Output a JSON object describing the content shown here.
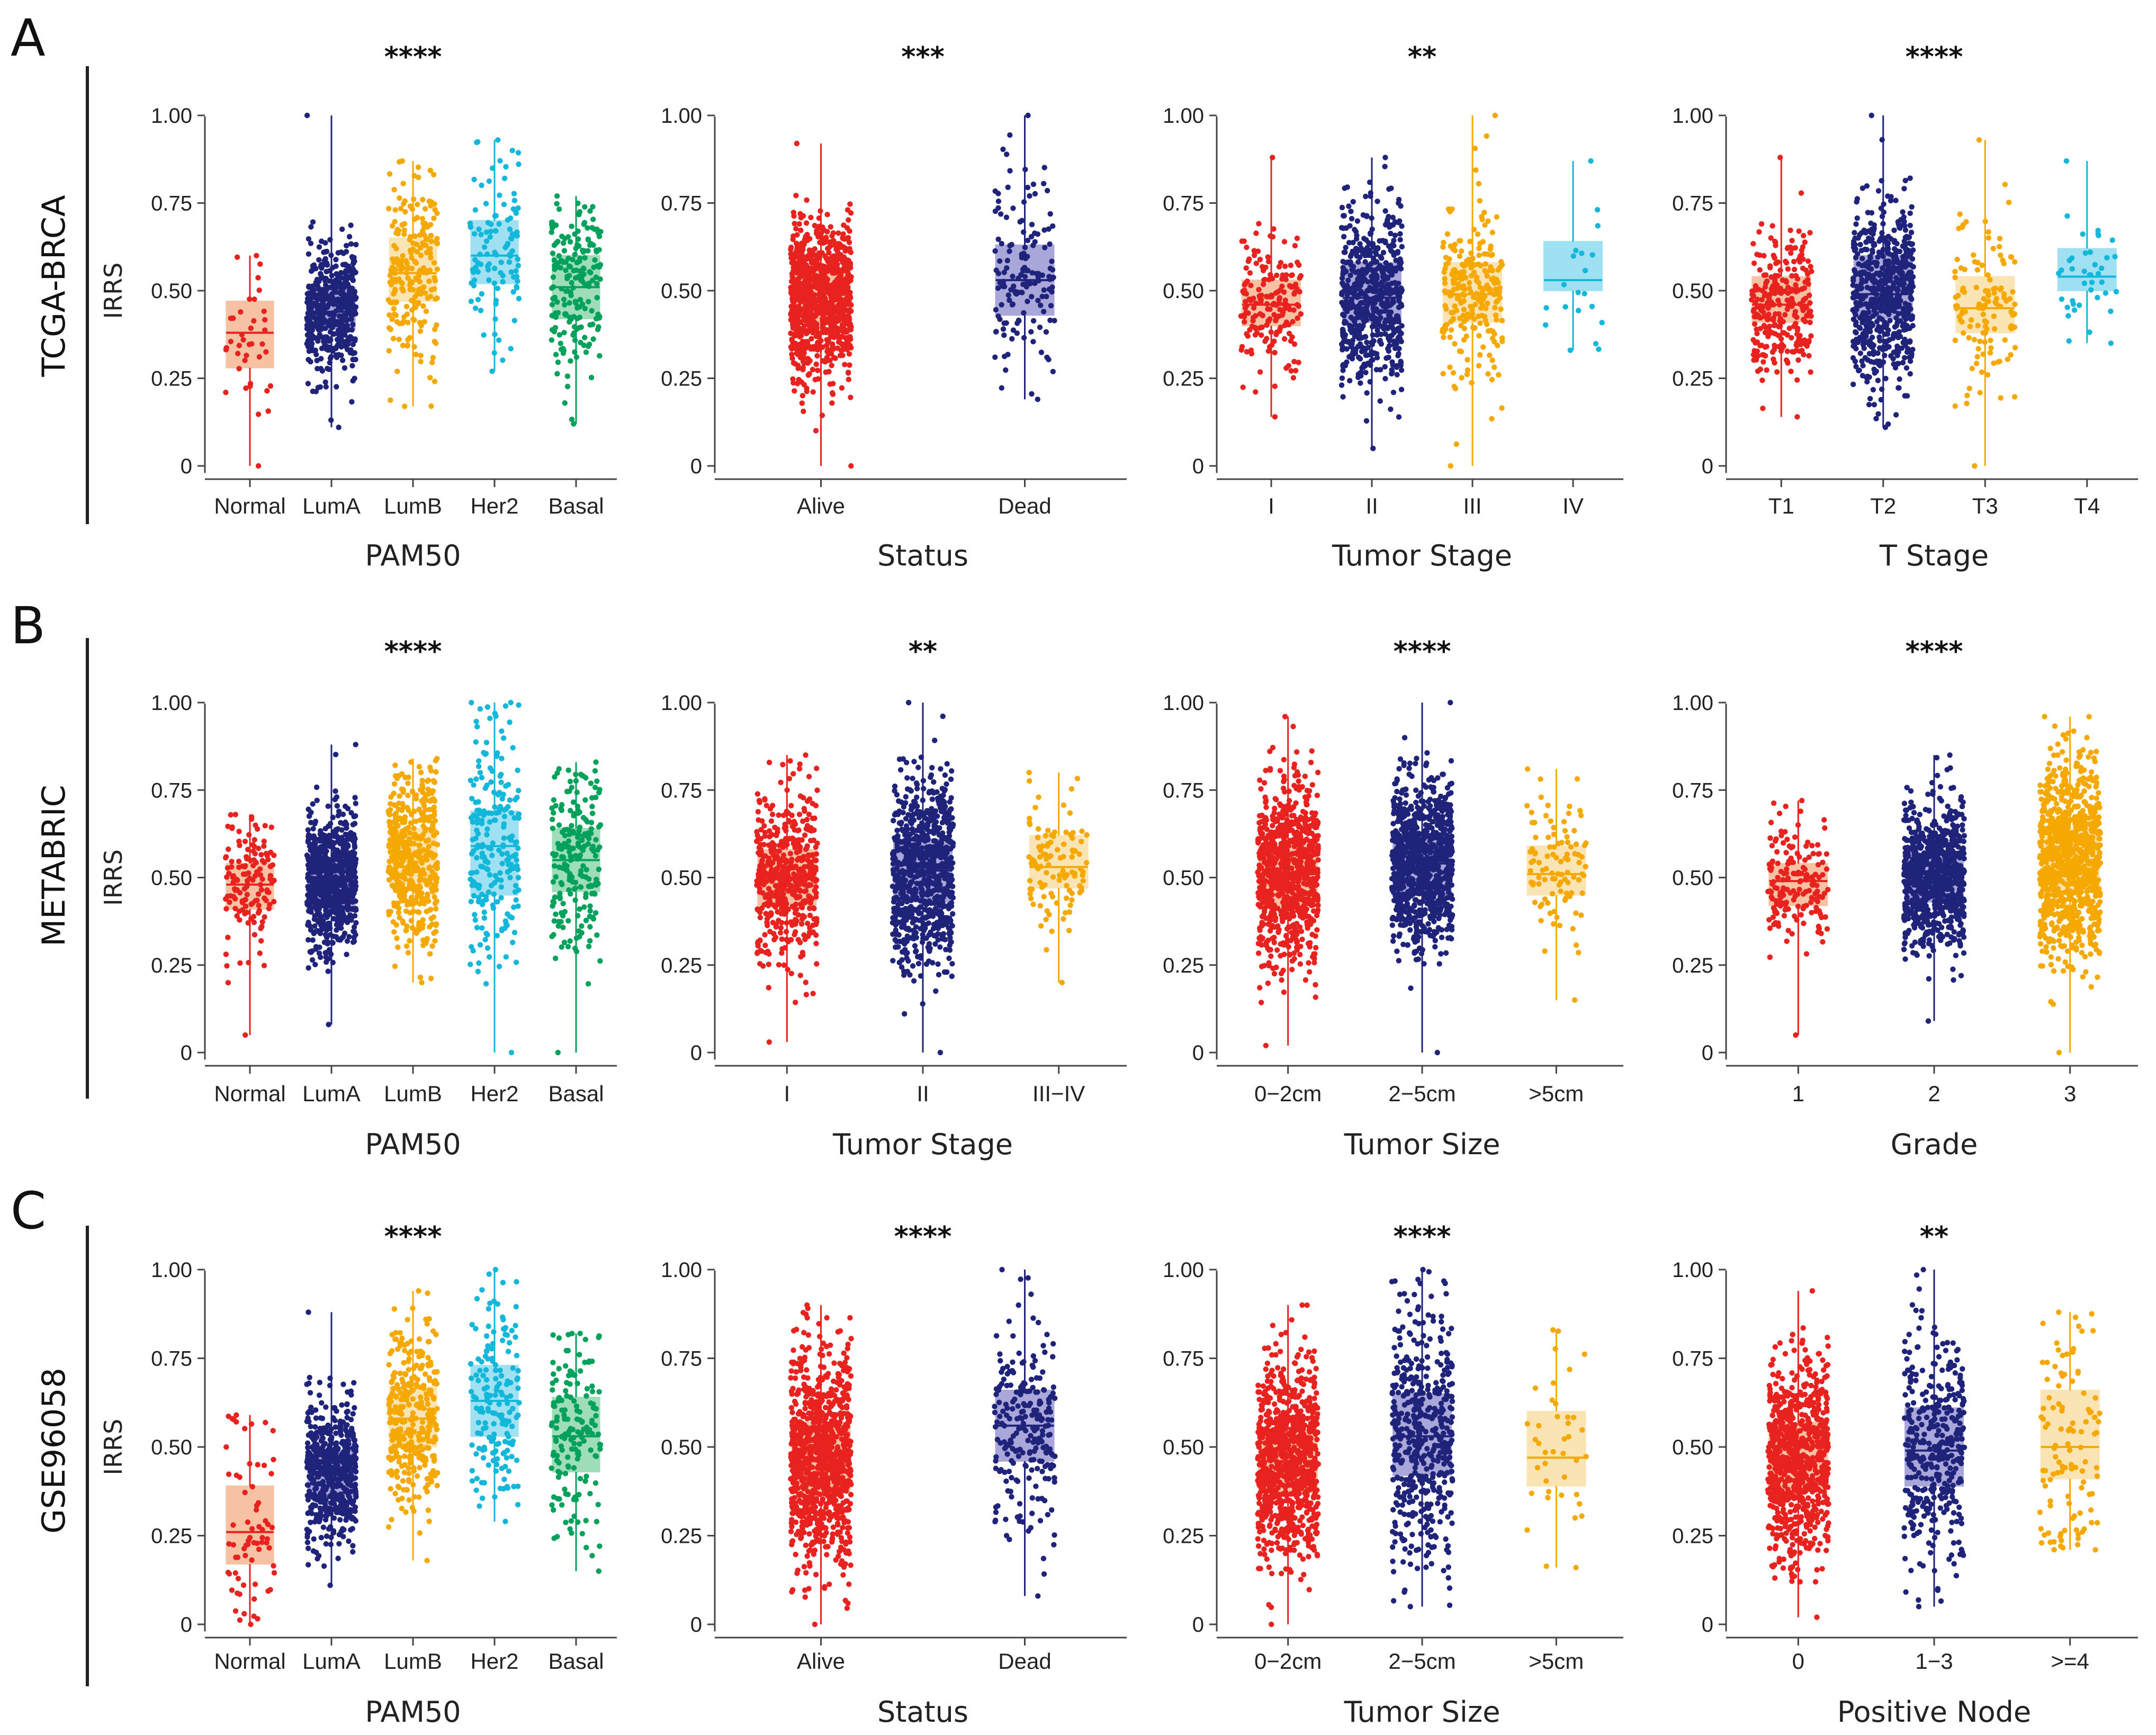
{
  "figure": {
    "rows": [
      {
        "letter": "A",
        "dataset": "TCGA-BRCA"
      },
      {
        "letter": "B",
        "dataset": "METABRIC"
      },
      {
        "letter": "C",
        "dataset": "GSE96058"
      }
    ]
  },
  "colors": {
    "red": "#e8231f",
    "navy": "#1f237a",
    "orange": "#f5a800",
    "cyan": "#12b7d9",
    "green": "#00a15b",
    "red_fill": "#f7c2a3",
    "navy_fill": "#a9a6d9",
    "orange_fill": "#fbe4b3",
    "cyan_fill": "#9fe0f2",
    "green_fill": "#9fddb8"
  },
  "chart_data": [
    {
      "type": "box",
      "row": 0,
      "col": 0,
      "title": "****",
      "xlabel": "PAM50",
      "ylabel": "IRRS",
      "ylim": [
        0,
        1
      ],
      "yticks": [
        "0",
        "0.25",
        "0.50",
        "0.75",
        "1.00"
      ],
      "categories": [
        "Normal",
        "LumA",
        "LumB",
        "Her2",
        "Basal"
      ],
      "colors": [
        "red",
        "navy",
        "orange",
        "cyan",
        "green"
      ],
      "n": [
        40,
        450,
        220,
        110,
        200
      ],
      "boxes": [
        {
          "min": 0.0,
          "q1": 0.28,
          "median": 0.38,
          "q3": 0.47,
          "max": 0.6
        },
        {
          "min": 0.11,
          "q1": 0.39,
          "median": 0.44,
          "q3": 0.51,
          "max": 1.0
        },
        {
          "min": 0.17,
          "q1": 0.47,
          "median": 0.55,
          "q3": 0.65,
          "max": 0.87
        },
        {
          "min": 0.27,
          "q1": 0.52,
          "median": 0.6,
          "q3": 0.7,
          "max": 0.93
        },
        {
          "min": 0.12,
          "q1": 0.42,
          "median": 0.51,
          "q3": 0.6,
          "max": 0.77
        }
      ]
    },
    {
      "type": "box",
      "row": 0,
      "col": 1,
      "title": "***",
      "xlabel": "Status",
      "ylabel": "",
      "ylim": [
        0,
        1
      ],
      "yticks": [
        "0",
        "0.25",
        "0.50",
        "0.75",
        "1.00"
      ],
      "categories": [
        "Alive",
        "Dead"
      ],
      "colors": [
        "red",
        "navy"
      ],
      "n": [
        900,
        150
      ],
      "boxes": [
        {
          "min": 0.0,
          "q1": 0.41,
          "median": 0.47,
          "q3": 0.56,
          "max": 0.92
        },
        {
          "min": 0.19,
          "q1": 0.43,
          "median": 0.53,
          "q3": 0.63,
          "max": 1.0
        }
      ]
    },
    {
      "type": "box",
      "row": 0,
      "col": 2,
      "title": "**",
      "xlabel": "Tumor Stage",
      "ylabel": "",
      "ylim": [
        0,
        1
      ],
      "yticks": [
        "0",
        "0.25",
        "0.50",
        "0.75",
        "1.00"
      ],
      "categories": [
        "I",
        "II",
        "III",
        "IV"
      ],
      "colors": [
        "red",
        "navy",
        "orange",
        "cyan"
      ],
      "n": [
        180,
        600,
        240,
        20
      ],
      "boxes": [
        {
          "min": 0.14,
          "q1": 0.4,
          "median": 0.46,
          "q3": 0.53,
          "max": 0.88
        },
        {
          "min": 0.05,
          "q1": 0.41,
          "median": 0.48,
          "q3": 0.58,
          "max": 0.88
        },
        {
          "min": 0.0,
          "q1": 0.41,
          "median": 0.49,
          "q3": 0.58,
          "max": 1.0
        },
        {
          "min": 0.33,
          "q1": 0.5,
          "median": 0.53,
          "q3": 0.64,
          "max": 0.87
        }
      ]
    },
    {
      "type": "box",
      "row": 0,
      "col": 3,
      "title": "****",
      "xlabel": "T Stage",
      "ylabel": "",
      "ylim": [
        0,
        1
      ],
      "yticks": [
        "0",
        "0.25",
        "0.50",
        "0.75",
        "1.00"
      ],
      "categories": [
        "T1",
        "T2",
        "T3",
        "T4"
      ],
      "colors": [
        "red",
        "navy",
        "orange",
        "cyan"
      ],
      "n": [
        280,
        610,
        130,
        40
      ],
      "boxes": [
        {
          "min": 0.14,
          "q1": 0.41,
          "median": 0.46,
          "q3": 0.54,
          "max": 0.88
        },
        {
          "min": 0.11,
          "q1": 0.42,
          "median": 0.49,
          "q3": 0.6,
          "max": 1.0
        },
        {
          "min": 0.0,
          "q1": 0.38,
          "median": 0.45,
          "q3": 0.54,
          "max": 0.93
        },
        {
          "min": 0.35,
          "q1": 0.5,
          "median": 0.54,
          "q3": 0.62,
          "max": 0.87
        }
      ]
    },
    {
      "type": "box",
      "row": 1,
      "col": 0,
      "title": "****",
      "xlabel": "PAM50",
      "ylabel": "IRRS",
      "ylim": [
        0,
        1
      ],
      "yticks": [
        "0",
        "0.25",
        "0.50",
        "0.75",
        "1.00"
      ],
      "categories": [
        "Normal",
        "LumA",
        "LumB",
        "Her2",
        "Basal"
      ],
      "colors": [
        "red",
        "navy",
        "orange",
        "cyan",
        "green"
      ],
      "n": [
        140,
        700,
        470,
        220,
        210
      ],
      "boxes": [
        {
          "min": 0.05,
          "q1": 0.41,
          "median": 0.48,
          "q3": 0.54,
          "max": 0.68
        },
        {
          "min": 0.08,
          "q1": 0.42,
          "median": 0.49,
          "q3": 0.55,
          "max": 0.88
        },
        {
          "min": 0.2,
          "q1": 0.48,
          "median": 0.56,
          "q3": 0.64,
          "max": 0.84
        },
        {
          "min": 0.0,
          "q1": 0.45,
          "median": 0.59,
          "q3": 0.69,
          "max": 1.0
        },
        {
          "min": 0.0,
          "q1": 0.46,
          "median": 0.55,
          "q3": 0.64,
          "max": 0.83
        }
      ]
    },
    {
      "type": "box",
      "row": 1,
      "col": 1,
      "title": "**",
      "xlabel": "Tumor Stage",
      "ylabel": "",
      "ylim": [
        0,
        1
      ],
      "yticks": [
        "0",
        "0.25",
        "0.50",
        "0.75",
        "1.00"
      ],
      "categories": [
        "I",
        "II",
        "III−IV"
      ],
      "colors": [
        "red",
        "navy",
        "orange"
      ],
      "n": [
        500,
        800,
        110
      ],
      "boxes": [
        {
          "min": 0.03,
          "q1": 0.42,
          "median": 0.5,
          "q3": 0.58,
          "max": 0.85
        },
        {
          "min": 0.0,
          "q1": 0.43,
          "median": 0.52,
          "q3": 0.61,
          "max": 1.0
        },
        {
          "min": 0.2,
          "q1": 0.47,
          "median": 0.53,
          "q3": 0.62,
          "max": 0.8
        }
      ]
    },
    {
      "type": "box",
      "row": 1,
      "col": 2,
      "title": "****",
      "xlabel": "Tumor Size",
      "ylabel": "",
      "ylim": [
        0,
        1
      ],
      "yticks": [
        "0",
        "0.25",
        "0.50",
        "0.75",
        "1.00"
      ],
      "categories": [
        "0−2cm",
        "2−5cm",
        ">5cm"
      ],
      "colors": [
        "red",
        "navy",
        "orange"
      ],
      "n": [
        800,
        900,
        100
      ],
      "boxes": [
        {
          "min": 0.02,
          "q1": 0.42,
          "median": 0.51,
          "q3": 0.59,
          "max": 0.96
        },
        {
          "min": 0.0,
          "q1": 0.45,
          "median": 0.54,
          "q3": 0.61,
          "max": 1.0
        },
        {
          "min": 0.15,
          "q1": 0.45,
          "median": 0.51,
          "q3": 0.59,
          "max": 0.81
        }
      ]
    },
    {
      "type": "box",
      "row": 1,
      "col": 3,
      "title": "****",
      "xlabel": "Grade",
      "ylabel": "",
      "ylim": [
        0,
        1
      ],
      "yticks": [
        "0",
        "0.25",
        "0.50",
        "0.75",
        "1.00"
      ],
      "categories": [
        "1",
        "2",
        "3"
      ],
      "colors": [
        "red",
        "navy",
        "orange"
      ],
      "n": [
        170,
        800,
        950
      ],
      "boxes": [
        {
          "min": 0.05,
          "q1": 0.42,
          "median": 0.49,
          "q3": 0.54,
          "max": 0.72
        },
        {
          "min": 0.09,
          "q1": 0.43,
          "median": 0.5,
          "q3": 0.57,
          "max": 0.85
        },
        {
          "min": 0.0,
          "q1": 0.46,
          "median": 0.55,
          "q3": 0.64,
          "max": 0.96
        }
      ]
    },
    {
      "type": "box",
      "row": 2,
      "col": 0,
      "title": "****",
      "xlabel": "PAM50",
      "ylabel": "IRRS",
      "ylim": [
        0,
        1
      ],
      "yticks": [
        "0",
        "0.25",
        "0.50",
        "0.75",
        "1.00"
      ],
      "categories": [
        "Normal",
        "LumA",
        "LumB",
        "Her2",
        "Basal"
      ],
      "colors": [
        "red",
        "navy",
        "orange",
        "cyan",
        "green"
      ],
      "n": [
        70,
        550,
        330,
        170,
        160
      ],
      "boxes": [
        {
          "min": 0.0,
          "q1": 0.17,
          "median": 0.26,
          "q3": 0.39,
          "max": 0.59
        },
        {
          "min": 0.11,
          "q1": 0.36,
          "median": 0.43,
          "q3": 0.49,
          "max": 0.88
        },
        {
          "min": 0.18,
          "q1": 0.5,
          "median": 0.58,
          "q3": 0.67,
          "max": 0.94
        },
        {
          "min": 0.29,
          "q1": 0.53,
          "median": 0.63,
          "q3": 0.73,
          "max": 1.0
        },
        {
          "min": 0.15,
          "q1": 0.43,
          "median": 0.53,
          "q3": 0.64,
          "max": 0.82
        }
      ]
    },
    {
      "type": "box",
      "row": 2,
      "col": 1,
      "title": "****",
      "xlabel": "Status",
      "ylabel": "",
      "ylim": [
        0,
        1
      ],
      "yticks": [
        "0",
        "0.25",
        "0.50",
        "0.75",
        "1.00"
      ],
      "categories": [
        "Alive",
        "Dead"
      ],
      "colors": [
        "red",
        "navy"
      ],
      "n": [
        950,
        230
      ],
      "boxes": [
        {
          "min": 0.0,
          "q1": 0.37,
          "median": 0.46,
          "q3": 0.57,
          "max": 0.9
        },
        {
          "min": 0.08,
          "q1": 0.46,
          "median": 0.56,
          "q3": 0.66,
          "max": 1.0
        }
      ]
    },
    {
      "type": "box",
      "row": 2,
      "col": 2,
      "title": "****",
      "xlabel": "Tumor Size",
      "ylabel": "",
      "ylim": [
        0,
        1
      ],
      "yticks": [
        "0",
        "0.25",
        "0.50",
        "0.75",
        "1.00"
      ],
      "categories": [
        "0−2cm",
        "2−5cm",
        ">5cm"
      ],
      "colors": [
        "red",
        "navy",
        "orange"
      ],
      "n": [
        900,
        480,
        40
      ],
      "boxes": [
        {
          "min": 0.0,
          "q1": 0.37,
          "median": 0.46,
          "q3": 0.55,
          "max": 0.9
        },
        {
          "min": 0.05,
          "q1": 0.42,
          "median": 0.53,
          "q3": 0.65,
          "max": 1.0
        },
        {
          "min": 0.16,
          "q1": 0.39,
          "median": 0.47,
          "q3": 0.6,
          "max": 0.83
        }
      ]
    },
    {
      "type": "box",
      "row": 2,
      "col": 3,
      "title": "**",
      "xlabel": "Positive Node",
      "ylabel": "",
      "ylim": [
        0,
        1
      ],
      "yticks": [
        "0",
        "0.25",
        "0.50",
        "0.75",
        "1.00"
      ],
      "categories": [
        "0",
        "1−3",
        ">=4"
      ],
      "colors": [
        "red",
        "navy",
        "orange"
      ],
      "n": [
        800,
        380,
        110
      ],
      "boxes": [
        {
          "min": 0.02,
          "q1": 0.38,
          "median": 0.46,
          "q3": 0.57,
          "max": 0.94
        },
        {
          "min": 0.05,
          "q1": 0.39,
          "median": 0.49,
          "q3": 0.61,
          "max": 1.0
        },
        {
          "min": 0.21,
          "q1": 0.41,
          "median": 0.5,
          "q3": 0.66,
          "max": 0.88
        }
      ]
    }
  ]
}
